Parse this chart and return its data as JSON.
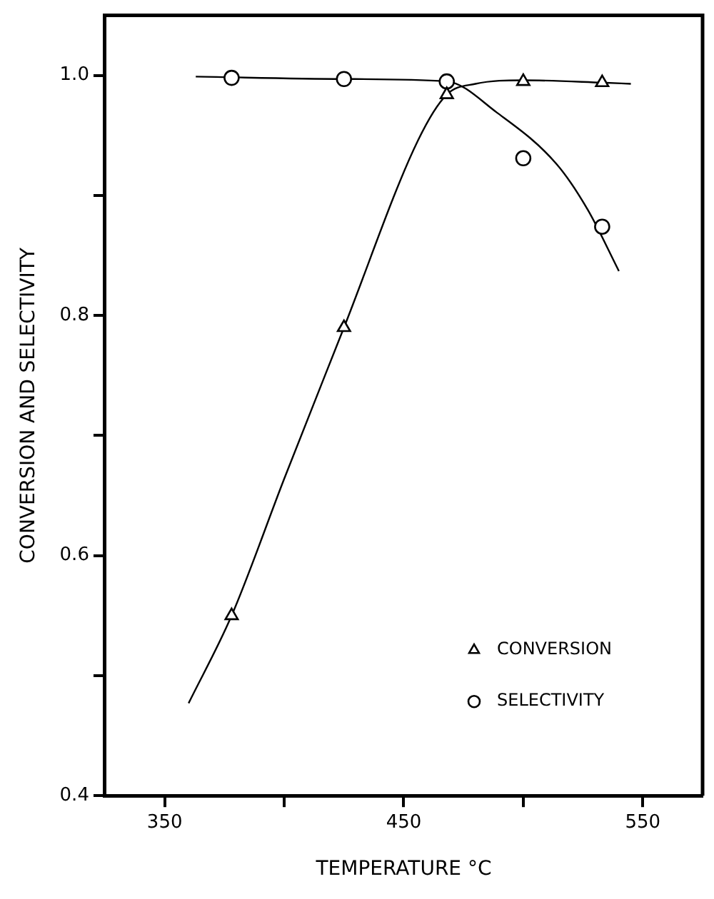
{
  "chart_data": {
    "type": "scatter",
    "xlabel": "TEMPERATURE °C",
    "ylabel": "CONVERSION AND SELECTIVITY",
    "xlim": [
      325,
      575
    ],
    "ylim": [
      0.4,
      1.05
    ],
    "xticks": [
      350,
      {
        "value": 400,
        "label": null
      },
      450,
      {
        "value": 500,
        "label": null
      },
      550
    ],
    "yticks": [
      0.4,
      {
        "value": 0.5,
        "label": null
      },
      0.6,
      {
        "value": 0.7,
        "label": null
      },
      0.8,
      {
        "value": 0.9,
        "label": null
      },
      {
        "value": 1,
        "label": "1.0"
      }
    ],
    "grid": false,
    "legend": "bottom right",
    "series": [
      {
        "name": "CONVERSION",
        "type": "scatter",
        "marker": "triangle",
        "color": "#000000",
        "x": [
          378,
          425,
          468,
          500,
          533
        ],
        "values": [
          0.55,
          0.79,
          0.984,
          0.995,
          0.994
        ]
      },
      {
        "name": "SELECTIVITY",
        "type": "scatter",
        "marker": "circle",
        "color": "#000000",
        "x": [
          378,
          425,
          468,
          500,
          533
        ],
        "values": [
          0.998,
          0.997,
          0.995,
          0.931,
          0.874
        ]
      },
      {
        "type": "line",
        "marker": "none",
        "color": "#000000",
        "x": [
          360,
          378,
          400,
          425,
          456,
          468,
          480,
          500,
          533,
          545
        ],
        "values": [
          0.477,
          0.55,
          0.664,
          0.79,
          0.946,
          0.984,
          0.993,
          0.996,
          0.994,
          0.993
        ]
      },
      {
        "type": "line",
        "marker": "none",
        "color": "#000000",
        "x": [
          363,
          425,
          468,
          489,
          514,
          527,
          540
        ],
        "values": [
          0.999,
          0.997,
          0.995,
          0.969,
          0.926,
          0.888,
          0.837
        ]
      }
    ]
  }
}
